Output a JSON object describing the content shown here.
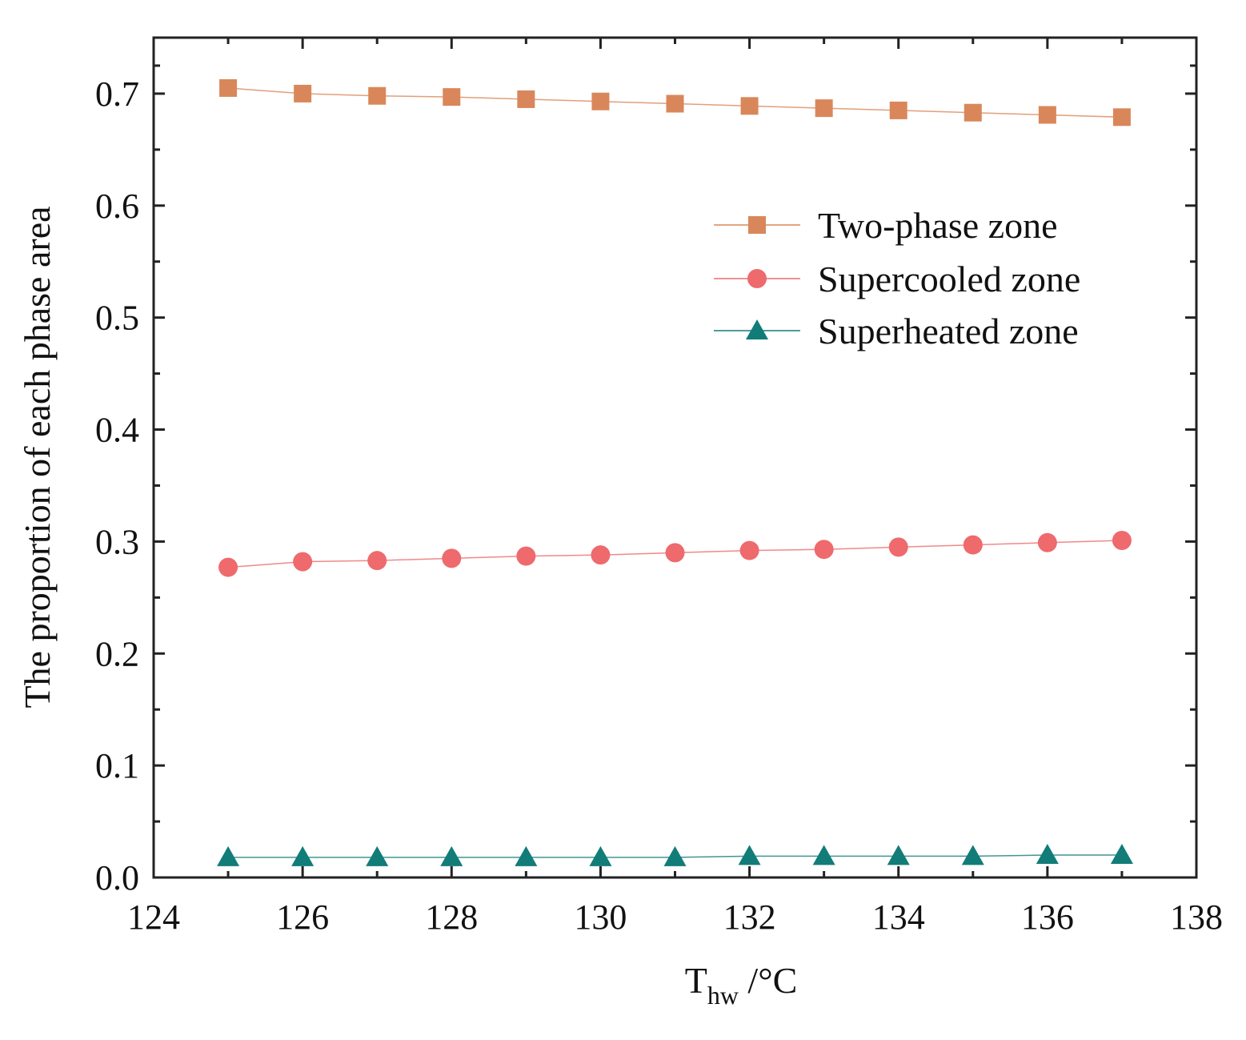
{
  "chart_data": {
    "type": "line",
    "title": "",
    "xlabel": "T",
    "xlabel_subscript": "hw",
    "xlabel_unit": " /°C",
    "ylabel": "The proportion of each phase area",
    "xlim": [
      124,
      138
    ],
    "ylim": [
      0.0,
      0.75
    ],
    "xticks": [
      124,
      126,
      128,
      130,
      132,
      134,
      136,
      138
    ],
    "xtick_labels": [
      "124",
      "126",
      "128",
      "130",
      "132",
      "134",
      "136",
      "138"
    ],
    "yticks": [
      0.0,
      0.1,
      0.2,
      0.3,
      0.4,
      0.5,
      0.6,
      0.7
    ],
    "ytick_labels": [
      "0.0",
      "0.1",
      "0.2",
      "0.3",
      "0.4",
      "0.5",
      "0.6",
      "0.7"
    ],
    "grid": false,
    "legend_position": "upper-right",
    "x": [
      125,
      126,
      127,
      128,
      129,
      130,
      131,
      132,
      133,
      134,
      135,
      136,
      137
    ],
    "series": [
      {
        "name": "Two-phase zone",
        "marker": "square",
        "color": "#D9875A",
        "values": [
          0.705,
          0.7,
          0.698,
          0.697,
          0.695,
          0.693,
          0.691,
          0.689,
          0.687,
          0.685,
          0.683,
          0.681,
          0.679
        ]
      },
      {
        "name": "Supercooled zone",
        "marker": "circle",
        "color": "#EE6A6D",
        "values": [
          0.277,
          0.282,
          0.283,
          0.285,
          0.287,
          0.288,
          0.29,
          0.292,
          0.293,
          0.295,
          0.297,
          0.299,
          0.301
        ]
      },
      {
        "name": "Superheated zone",
        "marker": "triangle",
        "color": "#127C78",
        "values": [
          0.018,
          0.018,
          0.018,
          0.018,
          0.018,
          0.018,
          0.018,
          0.019,
          0.019,
          0.019,
          0.019,
          0.02,
          0.02
        ]
      }
    ]
  }
}
